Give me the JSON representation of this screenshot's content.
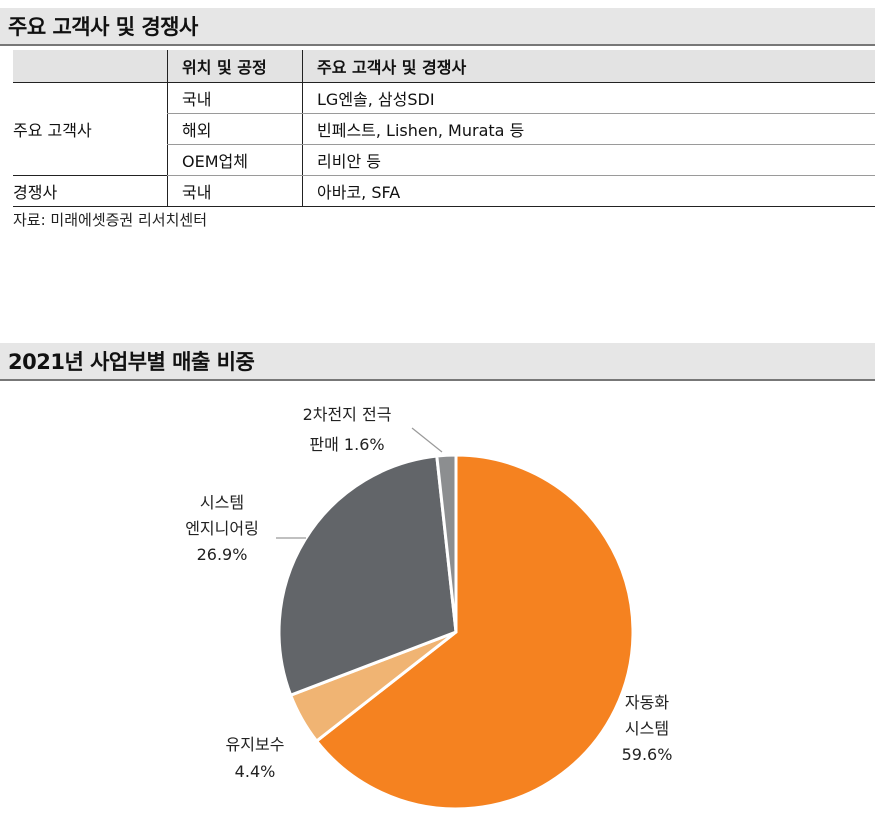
{
  "section1": {
    "title": "주요 고객사 및 경쟁사",
    "headers": [
      "",
      "위치 및 공정",
      "주요 고객사 및 경쟁사"
    ],
    "groups": [
      {
        "name": "주요 고객사",
        "rows": [
          {
            "location": "국내",
            "companies": "LG엔솔, 삼성SDI"
          },
          {
            "location": "해외",
            "companies": "빈페스트, Lishen, Murata 등"
          },
          {
            "location": "OEM업체",
            "companies": "리비안 등"
          }
        ]
      },
      {
        "name": "경쟁사",
        "rows": [
          {
            "location": "국내",
            "companies": "아바코, SFA"
          }
        ]
      }
    ],
    "source": "자료: 미래에셋증권 리서치센터"
  },
  "section2": {
    "title": "2021년 사업부별 매출 비중"
  },
  "chart_data": {
    "type": "pie",
    "title": "2021년 사업부별 매출 비중",
    "categories": [
      "자동화 시스템",
      "유지보수",
      "시스템 엔지니어링",
      "2차전지 전극 판매"
    ],
    "values": [
      59.6,
      4.4,
      26.9,
      1.6
    ],
    "value_labels": [
      "59.6%",
      "4.4%",
      "26.9%",
      "1.6%"
    ],
    "colors": [
      "#f58220",
      "#f0b473",
      "#626569",
      "#8c8e90"
    ],
    "start_angle_deg": 0,
    "direction": "clockwise",
    "labels": [
      {
        "lines": [
          "자동화",
          "시스템",
          "59.6%"
        ]
      },
      {
        "lines": [
          "유지보수",
          "4.4%"
        ]
      },
      {
        "lines": [
          "시스템",
          "엔지니어링",
          "26.9%"
        ]
      },
      {
        "lines": [
          "2차전지 전극",
          "판매 1.6%"
        ]
      }
    ]
  }
}
